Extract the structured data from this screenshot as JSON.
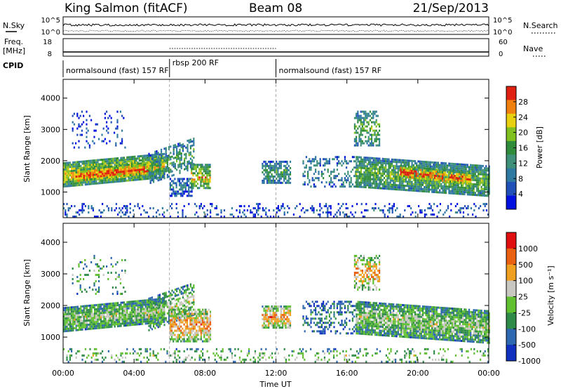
{
  "header": {
    "station": "King Salmon (fitACF)",
    "beam": "Beam 08",
    "date": "21/Sep/2013"
  },
  "top_panels": {
    "nsky_label": "N.Sky",
    "nsky_ticks": [
      "10^5",
      "10^0"
    ],
    "nsearch_label": "N.Search",
    "nsearch_ticks": [
      "10^5",
      "10^0"
    ],
    "freq_label_line1": "Freq.",
    "freq_label_line2": "[MHz]",
    "freq_ticks": [
      "18",
      "8"
    ],
    "nave_label": "Nave",
    "nave_ticks": [
      "60",
      "0"
    ],
    "cpid_label": "CPID",
    "cpid_segments": [
      {
        "label": "normalsound (fast) 157 RF",
        "start_hour": 0,
        "end_hour": 6
      },
      {
        "label": "rbsp 200 RF",
        "start_hour": 6,
        "end_hour": 12
      },
      {
        "label": "normalsound (fast) 157 RF",
        "start_hour": 12,
        "end_hour": 24
      }
    ]
  },
  "chart_data": [
    {
      "type": "heatmap",
      "name": "power",
      "ylabel": "Slant Range [km]",
      "ylim": [
        180,
        4600
      ],
      "yticks": [
        1000,
        2000,
        3000,
        4000
      ],
      "xlim": [
        0,
        24
      ],
      "colorbar_label": "Power [dB]",
      "colorbar_range": [
        0,
        32
      ],
      "colorbar_ticks": [
        "4",
        "8",
        "12",
        "16",
        "20",
        "24",
        "28"
      ],
      "colorbar_colors": [
        "#0010e0",
        "#2050b8",
        "#2e7aa0",
        "#3e9078",
        "#2e8c3a",
        "#80c020",
        "#e8d010",
        "#f08010",
        "#e02010"
      ],
      "regions": [
        {
          "t0": 0.0,
          "t1": 5.7,
          "r0": 1350,
          "r1": 2100,
          "level": 0.75,
          "density": 0.95,
          "slope": 300
        },
        {
          "t0": 0.7,
          "t1": 4.8,
          "r0": 1450,
          "r1": 1850,
          "level": 0.95,
          "density": 0.9,
          "slope": 250
        },
        {
          "t0": 0.5,
          "t1": 3.5,
          "r0": 2400,
          "r1": 3600,
          "level": 0.15,
          "density": 0.15,
          "slope": 0
        },
        {
          "t0": 4.8,
          "t1": 7.4,
          "r0": 1500,
          "r1": 2500,
          "level": 0.45,
          "density": 0.55,
          "slope": 500
        },
        {
          "t0": 6.0,
          "t1": 7.3,
          "r0": 900,
          "r1": 1450,
          "level": 0.3,
          "density": 0.7,
          "slope": 0
        },
        {
          "t0": 7.2,
          "t1": 8.3,
          "r0": 1100,
          "r1": 1900,
          "level": 0.75,
          "density": 0.75,
          "slope": 0
        },
        {
          "t0": 11.2,
          "t1": 12.8,
          "r0": 1300,
          "r1": 2000,
          "level": 0.45,
          "density": 0.75,
          "slope": 0
        },
        {
          "t0": 13.5,
          "t1": 16.5,
          "r0": 1150,
          "r1": 2150,
          "level": 0.35,
          "density": 0.35,
          "slope": 0
        },
        {
          "t0": 16.4,
          "t1": 17.8,
          "r0": 2500,
          "r1": 3600,
          "level": 0.55,
          "density": 0.5,
          "slope": 0
        },
        {
          "t0": 16.5,
          "t1": 24.0,
          "r0": 1000,
          "r1": 2000,
          "level": 0.55,
          "density": 0.9,
          "slope": -300
        },
        {
          "t0": 19.0,
          "t1": 23.0,
          "r0": 1350,
          "r1": 1750,
          "level": 0.95,
          "density": 0.8,
          "slope": -250
        },
        {
          "t0": 0.0,
          "t1": 24.0,
          "r0": 200,
          "r1": 650,
          "level": 0.2,
          "density": 0.2,
          "slope": 0
        }
      ]
    },
    {
      "type": "heatmap",
      "name": "velocity",
      "ylabel": "Slant Range [km]",
      "ylim": [
        180,
        4600
      ],
      "yticks": [
        1000,
        2000,
        3000,
        4000
      ],
      "xlim": [
        0,
        24
      ],
      "xlabel": "Time UT",
      "xticks": [
        "00:00",
        "04:00",
        "08:00",
        "12:00",
        "16:00",
        "20:00",
        "00:00"
      ],
      "colorbar_label": "Velocity [m s⁻¹]",
      "colorbar_ticks": [
        "1000",
        "500",
        "100",
        "25",
        "-25",
        "-100",
        "-500",
        "-1000"
      ],
      "colorbar_colors": [
        "#1030c0",
        "#2e68b0",
        "#2e8c48",
        "#60c030",
        "#c8c8c0",
        "#f0a020",
        "#e86010",
        "#e01010"
      ],
      "regions": [
        {
          "t0": 0.0,
          "t1": 5.7,
          "r0": 1350,
          "r1": 2100,
          "level": 0.5,
          "density": 0.95,
          "slope": 300
        },
        {
          "t0": 0.5,
          "t1": 3.5,
          "r0": 2400,
          "r1": 3600,
          "level": 0.4,
          "density": 0.15,
          "slope": 0
        },
        {
          "t0": 4.8,
          "t1": 7.4,
          "r0": 1500,
          "r1": 2500,
          "level": 0.5,
          "density": 0.55,
          "slope": 500
        },
        {
          "t0": 6.0,
          "t1": 8.3,
          "r0": 900,
          "r1": 1900,
          "level": 0.75,
          "density": 0.75,
          "slope": 0
        },
        {
          "t0": 11.2,
          "t1": 12.8,
          "r0": 1300,
          "r1": 2000,
          "level": 0.75,
          "density": 0.8,
          "slope": 0
        },
        {
          "t0": 13.5,
          "t1": 16.5,
          "r0": 1150,
          "r1": 2150,
          "level": 0.25,
          "density": 0.4,
          "slope": 0
        },
        {
          "t0": 16.4,
          "t1": 17.8,
          "r0": 2500,
          "r1": 3600,
          "level": 0.7,
          "density": 0.5,
          "slope": 0
        },
        {
          "t0": 16.5,
          "t1": 24.0,
          "r0": 1000,
          "r1": 2000,
          "level": 0.5,
          "density": 0.9,
          "slope": -300
        },
        {
          "t0": 0.0,
          "t1": 24.0,
          "r0": 200,
          "r1": 650,
          "level": 0.5,
          "density": 0.2,
          "slope": 0
        }
      ]
    }
  ]
}
